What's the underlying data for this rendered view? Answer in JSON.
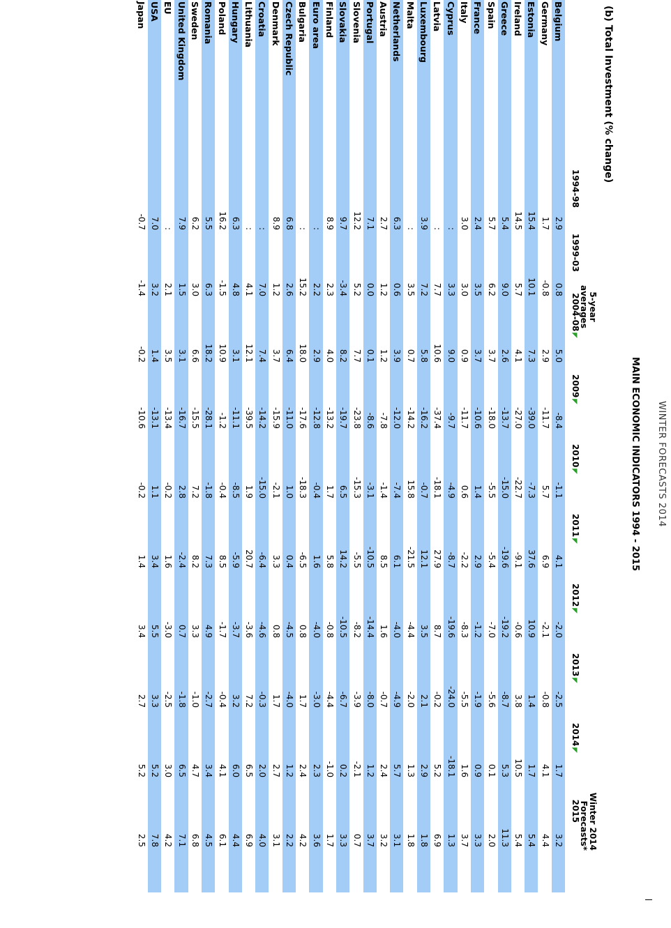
{
  "header": {
    "running_title": "WINTER FORECASTS 2014",
    "main_title": "MAIN ECONOMIC INDICATORS 1994 - 2015",
    "section": "(b)  Total Investment (% change)"
  },
  "column_groups": {
    "five_year": "5-year\naverages",
    "forecast": "Winter 2014\nForecasts*"
  },
  "columns": [
    "1994-98",
    "1999-03",
    "2004-08",
    "2009",
    "2010",
    "2011",
    "2012",
    "2013",
    "2014",
    "2015"
  ],
  "colors": {
    "highlight": "#a3cdf6",
    "tick": "#2a9d2a"
  },
  "rows": [
    {
      "name": "Belgium",
      "v": [
        "2.9",
        "0.8",
        "5.0",
        "-8.4",
        "-1.1",
        "4.1",
        "-2.0",
        "-2.5",
        "1.7",
        "3.2"
      ],
      "hl": true
    },
    {
      "name": "Germany",
      "v": [
        "1.7",
        "-0.8",
        "2.9",
        "-11.7",
        "5.7",
        "6.9",
        "-2.1",
        "-0.8",
        "4.1",
        "4.4"
      ],
      "hl": false
    },
    {
      "name": "Estonia",
      "v": [
        "15.4",
        "10.1",
        "7.3",
        "-39.0",
        "-7.3",
        "37.6",
        "10.9",
        "1.4",
        "1.7",
        "5.4"
      ],
      "hl": true
    },
    {
      "name": "Ireland",
      "v": [
        "14.5",
        "5.7",
        "4.1",
        "-27.0",
        "-22.7",
        "-9.1",
        "-0.6",
        "3.8",
        "10.5",
        "5.4"
      ],
      "hl": false
    },
    {
      "name": "Greece",
      "v": [
        "5.4",
        "9.0",
        "2.6",
        "-13.7",
        "-15.0",
        "-19.6",
        "-19.2",
        "-8.7",
        "5.3",
        "11.3"
      ],
      "hl": true
    },
    {
      "name": "Spain",
      "v": [
        "5.7",
        "6.2",
        "3.7",
        "-18.0",
        "-5.5",
        "-5.4",
        "-7.0",
        "-5.6",
        "0.1",
        "2.0"
      ],
      "hl": false
    },
    {
      "name": "France",
      "v": [
        "2.4",
        "3.5",
        "3.7",
        "-10.6",
        "1.4",
        "2.9",
        "-1.2",
        "-1.9",
        "0.9",
        "3.3"
      ],
      "hl": true
    },
    {
      "name": "Italy",
      "v": [
        "3.0",
        "3.0",
        "0.9",
        "-11.7",
        "0.6",
        "-2.2",
        "-8.3",
        "-5.5",
        "1.6",
        "3.7"
      ],
      "hl": false
    },
    {
      "name": "Cyprus",
      "v": [
        ":",
        "3.3",
        "9.0",
        "-9.7",
        "-4.9",
        "-8.7",
        "-19.6",
        "-24.0",
        "-18.1",
        "1.3"
      ],
      "hl": true
    },
    {
      "name": "Latvia",
      "v": [
        ":",
        "7.7",
        "10.6",
        "-37.4",
        "-18.1",
        "27.9",
        "8.7",
        "-0.2",
        "5.2",
        "6.9"
      ],
      "hl": false
    },
    {
      "name": "Luxembourg",
      "v": [
        "3.9",
        "7.2",
        "5.8",
        "-16.2",
        "-0.7",
        "12.1",
        "3.5",
        "2.1",
        "2.9",
        "1.8"
      ],
      "hl": true
    },
    {
      "name": "Malta",
      "v": [
        ":",
        "3.5",
        "0.7",
        "-14.2",
        "15.8",
        "-21.5",
        "-4.4",
        "-2.0",
        "1.3",
        "1.8"
      ],
      "hl": false
    },
    {
      "name": "Netherlands",
      "v": [
        "6.3",
        "0.6",
        "3.9",
        "-12.0",
        "-7.4",
        "6.1",
        "-4.0",
        "-4.9",
        "5.7",
        "3.1"
      ],
      "hl": true
    },
    {
      "name": "Austria",
      "v": [
        "2.7",
        "1.2",
        "1.2",
        "-7.8",
        "-1.4",
        "8.5",
        "1.6",
        "-0.7",
        "2.4",
        "3.2"
      ],
      "hl": false
    },
    {
      "name": "Portugal",
      "v": [
        "7.1",
        "0.0",
        "0.1",
        "-8.6",
        "-3.1",
        "-10.5",
        "-14.4",
        "-8.0",
        "1.2",
        "3.7"
      ],
      "hl": true
    },
    {
      "name": "Slovenia",
      "v": [
        "12.2",
        "5.2",
        "7.7",
        "-23.8",
        "-15.3",
        "-5.5",
        "-8.2",
        "-3.9",
        "-2.1",
        "0.7"
      ],
      "hl": false
    },
    {
      "name": "Slovakia",
      "v": [
        "9.7",
        "-3.4",
        "8.2",
        "-19.7",
        "6.5",
        "14.2",
        "-10.5",
        "-6.7",
        "0.2",
        "3.3"
      ],
      "hl": true
    },
    {
      "name": "Finland",
      "v": [
        "8.9",
        "2.3",
        "4.0",
        "-13.2",
        "1.7",
        "5.8",
        "-0.8",
        "-4.4",
        "-1.0",
        "1.7"
      ],
      "hl": false
    },
    {
      "name": "Euro area",
      "v": [
        ":",
        "2.2",
        "2.9",
        "-12.8",
        "-0.4",
        "1.6",
        "-4.0",
        "-3.0",
        "2.3",
        "3.6"
      ],
      "hl": true
    },
    {
      "name": "Bulgaria",
      "v": [
        ":",
        "15.2",
        "18.0",
        "-17.6",
        "-18.3",
        "-6.5",
        "0.8",
        "1.7",
        "2.4",
        "4.2"
      ],
      "hl": false
    },
    {
      "name": "Czech Republic",
      "v": [
        "6.8",
        "2.6",
        "6.4",
        "-11.0",
        "1.0",
        "0.4",
        "-4.5",
        "-4.0",
        "1.2",
        "2.2"
      ],
      "hl": true
    },
    {
      "name": "Denmark",
      "v": [
        "8.9",
        "1.2",
        "3.7",
        "-15.9",
        "-2.1",
        "3.3",
        "0.8",
        "1.7",
        "2.7",
        "3.1"
      ],
      "hl": false
    },
    {
      "name": "Croatia",
      "v": [
        ":",
        "7.0",
        "7.4",
        "-14.2",
        "-15.0",
        "-6.4",
        "-4.6",
        "-0.3",
        "2.0",
        "4.0"
      ],
      "hl": true
    },
    {
      "name": "Lithuania",
      "v": [
        ":",
        "4.1",
        "12.1",
        "-39.5",
        "1.9",
        "20.7",
        "-3.6",
        "7.2",
        "6.5",
        "6.9"
      ],
      "hl": false
    },
    {
      "name": "Hungary",
      "v": [
        "6.3",
        "4.8",
        "3.1",
        "-11.1",
        "-8.5",
        "-5.9",
        "-3.7",
        "3.2",
        "6.0",
        "4.4"
      ],
      "hl": true
    },
    {
      "name": "Poland",
      "v": [
        "16.2",
        "-1.5",
        "10.9",
        "-1.2",
        "-0.4",
        "8.5",
        "-1.7",
        "-0.4",
        "4.1",
        "6.1"
      ],
      "hl": false
    },
    {
      "name": "Romania",
      "v": [
        "5.5",
        "6.3",
        "18.2",
        "-28.1",
        "-1.8",
        "7.3",
        "4.9",
        "-2.7",
        "3.4",
        "4.5"
      ],
      "hl": true
    },
    {
      "name": "Sweden",
      "v": [
        "6.2",
        "3.0",
        "6.6",
        "-15.5",
        "7.2",
        "8.2",
        "3.3",
        "-1.0",
        "4.7",
        "6.8"
      ],
      "hl": false
    },
    {
      "name": "United Kingdom",
      "v": [
        "7.9",
        "1.5",
        "3.1",
        "-16.7",
        "2.8",
        "-2.4",
        "0.7",
        "-1.8",
        "6.5",
        "7.1"
      ],
      "hl": true
    },
    {
      "name": "EU",
      "v": [
        ":",
        "2.1",
        "3.5",
        "-13.4",
        "-0.2",
        "1.6",
        "-3.0",
        "-2.5",
        "3.0",
        "4.2"
      ],
      "hl": false
    },
    {
      "name": "USA",
      "v": [
        "7.0",
        "3.2",
        "1.4",
        "-13.1",
        "1.1",
        "3.4",
        "5.5",
        "3.3",
        "5.2",
        "7.8"
      ],
      "hl": true
    },
    {
      "name": "Japan",
      "v": [
        "-0.7",
        "-1.4",
        "-0.2",
        "-10.6",
        "-0.2",
        "1.4",
        "3.4",
        "2.7",
        "5.2",
        "2.5"
      ],
      "hl": false
    }
  ]
}
